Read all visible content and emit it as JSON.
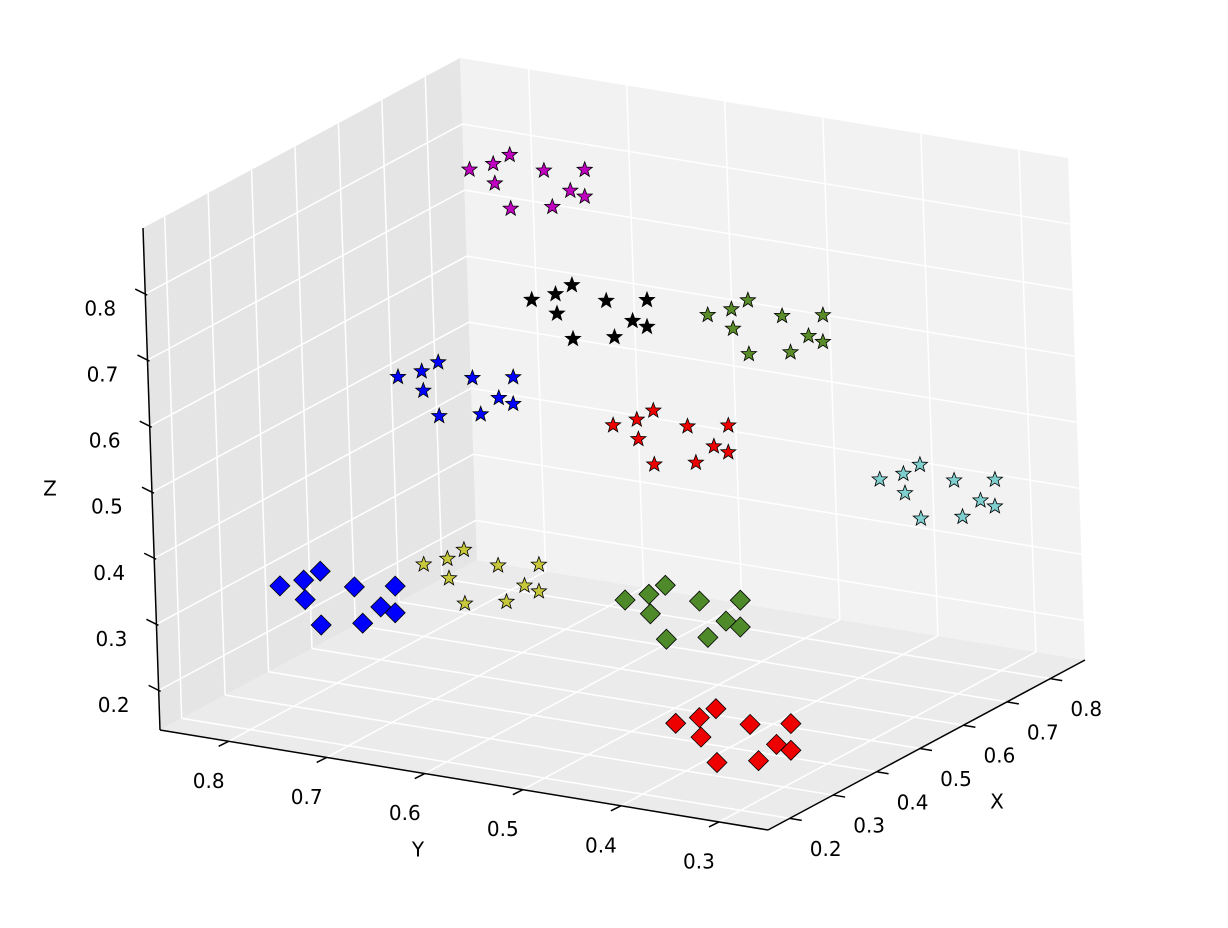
{
  "chart_data": {
    "type": "scatter3d",
    "x_label": "X",
    "y_label": "Y",
    "z_label": "Z",
    "xlim": [
      0.15,
      0.88
    ],
    "ylim": [
      0.25,
      0.87
    ],
    "zlim": [
      0.14,
      0.9
    ],
    "xticks": [
      0.2,
      0.3,
      0.4,
      0.5,
      0.6,
      0.7,
      0.8
    ],
    "yticks": [
      0.3,
      0.4,
      0.5,
      0.6,
      0.7,
      0.8
    ],
    "zticks": [
      0.2,
      0.3,
      0.4,
      0.5,
      0.6,
      0.7,
      0.8
    ],
    "grid": true,
    "series": [
      {
        "color": "#0000ff",
        "marker": "diamond",
        "x": [
          0.29,
          0.36,
          0.31,
          0.38,
          0.33,
          0.3,
          0.35,
          0.37,
          0.28,
          0.34
        ],
        "y": [
          0.78,
          0.72,
          0.79,
          0.77,
          0.74,
          0.81,
          0.73,
          0.8,
          0.76,
          0.71
        ],
        "z": [
          0.31,
          0.28,
          0.33,
          0.3,
          0.27,
          0.32,
          0.29,
          0.32,
          0.28,
          0.33
        ]
      },
      {
        "color": "#c8c83c",
        "marker": "star",
        "x": [
          0.33,
          0.4,
          0.35,
          0.42,
          0.37,
          0.34,
          0.39,
          0.41,
          0.32,
          0.38
        ],
        "y": [
          0.65,
          0.59,
          0.66,
          0.64,
          0.61,
          0.68,
          0.6,
          0.67,
          0.63,
          0.58
        ],
        "z": [
          0.36,
          0.33,
          0.38,
          0.35,
          0.32,
          0.37,
          0.34,
          0.37,
          0.33,
          0.38
        ]
      },
      {
        "color": "#4f8a2a",
        "marker": "diamond",
        "x": [
          0.43,
          0.5,
          0.45,
          0.52,
          0.47,
          0.44,
          0.49,
          0.51,
          0.42,
          0.48
        ],
        "y": [
          0.49,
          0.43,
          0.5,
          0.48,
          0.45,
          0.52,
          0.44,
          0.51,
          0.47,
          0.42
        ],
        "z": [
          0.31,
          0.28,
          0.33,
          0.3,
          0.27,
          0.32,
          0.29,
          0.32,
          0.28,
          0.33
        ]
      },
      {
        "color": "#ee0000",
        "marker": "diamond",
        "x": [
          0.16,
          0.23,
          0.18,
          0.25,
          0.2,
          0.17,
          0.22,
          0.24,
          0.15,
          0.21
        ],
        "y": [
          0.32,
          0.26,
          0.33,
          0.31,
          0.28,
          0.35,
          0.27,
          0.34,
          0.3,
          0.25
        ],
        "z": [
          0.26,
          0.23,
          0.28,
          0.25,
          0.22,
          0.27,
          0.24,
          0.27,
          0.23,
          0.28
        ]
      },
      {
        "color": "#7fcfcf",
        "marker": "star",
        "x": [
          0.64,
          0.71,
          0.66,
          0.73,
          0.68,
          0.65,
          0.7,
          0.72,
          0.63,
          0.69
        ],
        "y": [
          0.32,
          0.26,
          0.33,
          0.31,
          0.28,
          0.35,
          0.27,
          0.34,
          0.3,
          0.25
        ],
        "z": [
          0.46,
          0.43,
          0.48,
          0.45,
          0.42,
          0.47,
          0.44,
          0.47,
          0.43,
          0.48
        ]
      },
      {
        "color": "#ee0000",
        "marker": "star",
        "x": [
          0.35,
          0.42,
          0.37,
          0.44,
          0.39,
          0.36,
          0.41,
          0.43,
          0.34,
          0.4
        ],
        "y": [
          0.46,
          0.4,
          0.47,
          0.45,
          0.42,
          0.49,
          0.41,
          0.48,
          0.44,
          0.39
        ],
        "z": [
          0.61,
          0.58,
          0.63,
          0.6,
          0.57,
          0.62,
          0.59,
          0.62,
          0.58,
          0.63
        ]
      },
      {
        "color": "#5a8c2a",
        "marker": "star",
        "x": [
          0.44,
          0.51,
          0.46,
          0.53,
          0.48,
          0.45,
          0.5,
          0.52,
          0.43,
          0.49
        ],
        "y": [
          0.4,
          0.34,
          0.41,
          0.39,
          0.36,
          0.43,
          0.35,
          0.42,
          0.38,
          0.33
        ],
        "z": [
          0.76,
          0.73,
          0.78,
          0.75,
          0.72,
          0.77,
          0.74,
          0.77,
          0.73,
          0.78
        ]
      },
      {
        "color": "#000000",
        "marker": "star",
        "x": [
          0.33,
          0.4,
          0.35,
          0.42,
          0.37,
          0.34,
          0.39,
          0.41,
          0.32,
          0.38
        ],
        "y": [
          0.53,
          0.47,
          0.54,
          0.52,
          0.49,
          0.56,
          0.48,
          0.55,
          0.51,
          0.46
        ],
        "z": [
          0.79,
          0.76,
          0.81,
          0.78,
          0.75,
          0.8,
          0.77,
          0.8,
          0.76,
          0.81
        ]
      },
      {
        "color": "#0000ff",
        "marker": "star",
        "x": [
          0.22,
          0.29,
          0.24,
          0.31,
          0.26,
          0.23,
          0.28,
          0.3,
          0.21,
          0.27
        ],
        "y": [
          0.62,
          0.56,
          0.63,
          0.61,
          0.58,
          0.65,
          0.57,
          0.64,
          0.6,
          0.55
        ],
        "z": [
          0.69,
          0.66,
          0.71,
          0.68,
          0.65,
          0.7,
          0.67,
          0.7,
          0.66,
          0.71
        ]
      },
      {
        "color": "#bf00bf",
        "marker": "star",
        "x": [
          0.53,
          0.6,
          0.55,
          0.62,
          0.57,
          0.54,
          0.59,
          0.61,
          0.52,
          0.58
        ],
        "y": [
          0.68,
          0.62,
          0.69,
          0.67,
          0.64,
          0.71,
          0.63,
          0.7,
          0.66,
          0.61
        ],
        "z": [
          0.88,
          0.85,
          0.9,
          0.87,
          0.84,
          0.89,
          0.86,
          0.89,
          0.85,
          0.9
        ]
      }
    ]
  }
}
